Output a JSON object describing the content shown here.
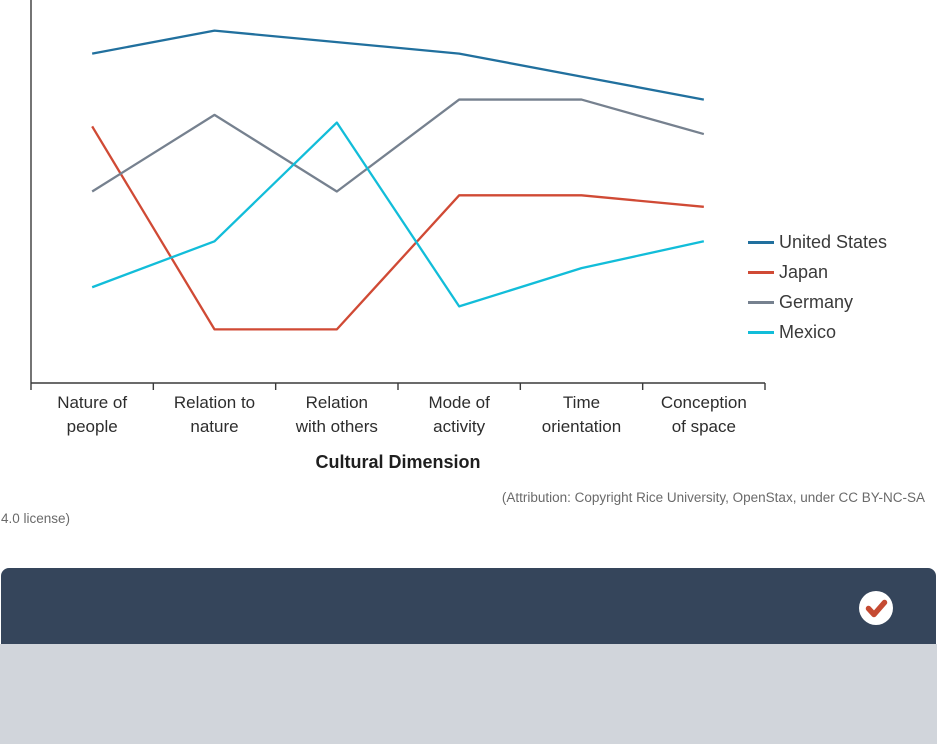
{
  "chart_data": {
    "type": "line",
    "categories": [
      "Nature of\npeople",
      "Relation to\nnature",
      "Relation\nwith others",
      "Mode of\nactivity",
      "Time\norientation",
      "Conception\nof space"
    ],
    "xlabel": "Cultural Dimension",
    "ylabel": "",
    "ylim": [
      0,
      10
    ],
    "y_tick_labels_visible": false,
    "grid": false,
    "legend_position": "right",
    "series": [
      {
        "name": "United States",
        "color": "#21709e",
        "values": [
          8.6,
          9.2,
          8.9,
          8.6,
          8.0,
          7.4
        ]
      },
      {
        "name": "Japan",
        "color": "#d04a35",
        "values": [
          6.7,
          1.4,
          1.4,
          4.9,
          4.9,
          4.6
        ]
      },
      {
        "name": "Germany",
        "color": "#76818f",
        "values": [
          5.0,
          7.0,
          5.0,
          7.4,
          7.4,
          6.5
        ]
      },
      {
        "name": "Mexico",
        "color": "#12bdd9",
        "values": [
          2.5,
          3.7,
          6.8,
          2.0,
          3.0,
          3.7
        ]
      }
    ]
  },
  "caption": {
    "line1": "(Attribution: Copyright Rice University, OpenStax, under CC BY-NC-SA",
    "line2": "4.0 license)"
  },
  "bottom_bar": {
    "status_icon": "checkmark-icon"
  },
  "colors": {
    "toolbar_bg": "#35455b",
    "panel_bg": "#d1d5db",
    "check_color": "#c54a32",
    "check_circle_bg": "#ffffff",
    "axis_color": "#3a3a3a"
  }
}
